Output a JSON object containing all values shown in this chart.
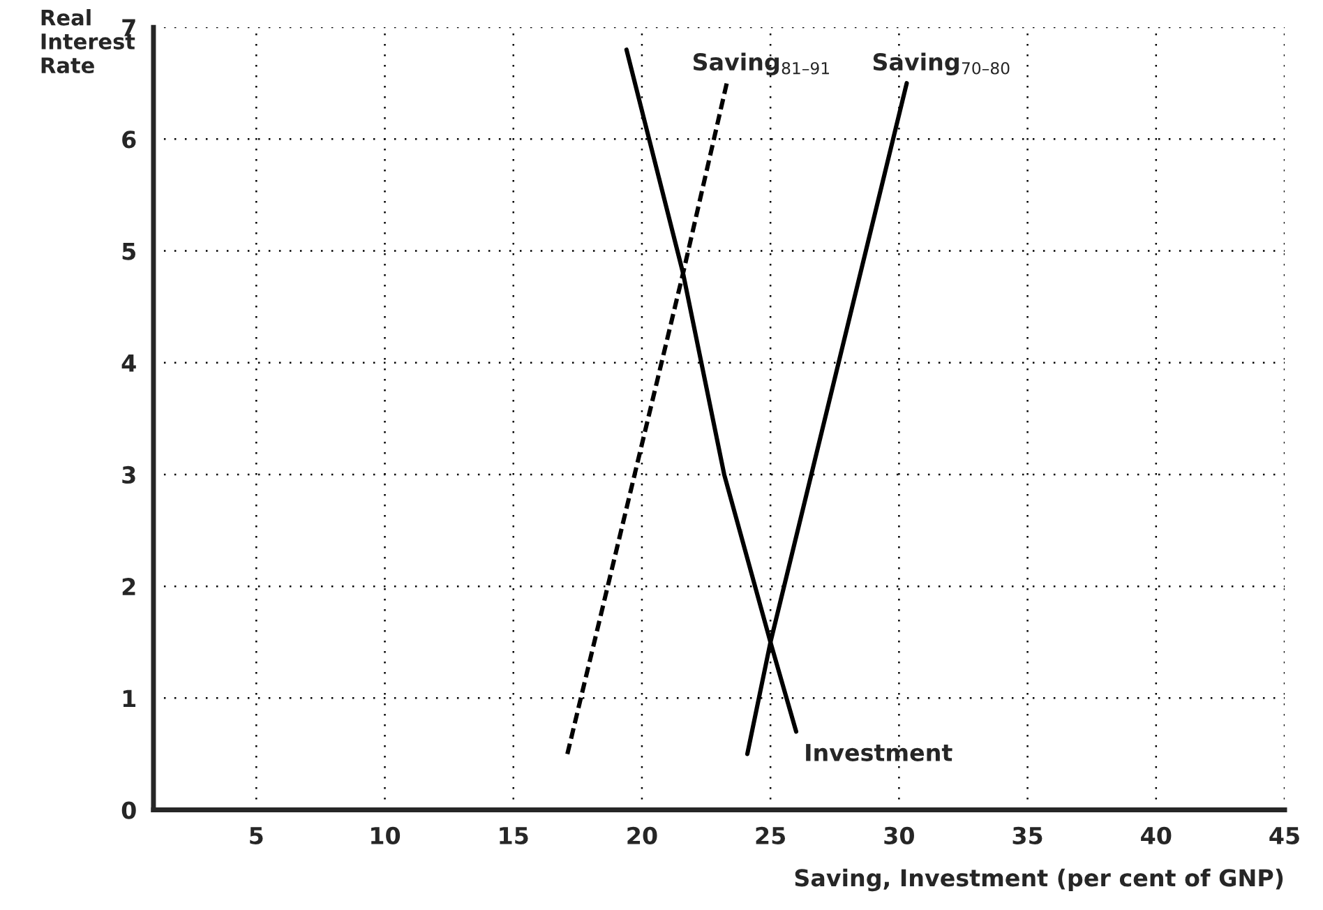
{
  "chart_data": {
    "type": "line",
    "xlabel": "Saving, Investment (per cent of GNP)",
    "ylabel": "Real\nInterest\nRate",
    "xlim": [
      1,
      45
    ],
    "xticks": [
      5,
      10,
      15,
      20,
      25,
      30,
      35,
      40,
      45
    ],
    "ylim": [
      0,
      7
    ],
    "yticks": [
      0,
      1,
      2,
      3,
      4,
      5,
      6,
      7
    ],
    "grid": true,
    "series": [
      {
        "name": "Investment",
        "color": "#000000",
        "line_style": "solid",
        "x": [
          19.4,
          21.6,
          23.2,
          25.0,
          26.0
        ],
        "values": [
          6.8,
          4.8,
          3.0,
          1.5,
          0.7
        ]
      },
      {
        "name": "Saving$_{81–91}$",
        "color": "#000000",
        "line_style": "dashed",
        "x": [
          17.1,
          21.6,
          23.3
        ],
        "values": [
          0.5,
          4.8,
          6.5
        ]
      },
      {
        "name": "Saving$_{70–80}$",
        "color": "#000000",
        "line_style": "solid",
        "x": [
          24.1,
          25.0,
          30.3
        ],
        "values": [
          0.5,
          1.5,
          6.5
        ]
      }
    ]
  }
}
